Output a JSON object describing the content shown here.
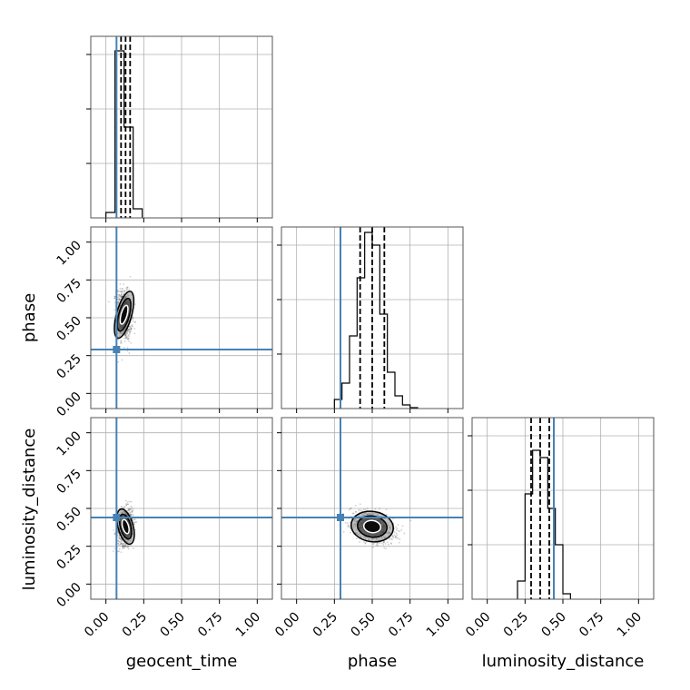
{
  "chart_data": {
    "type": "corner",
    "parameters": [
      "geocent_time",
      "phase",
      "luminosity_distance"
    ],
    "axis_labels": {
      "x": [
        "geocent_time",
        "phase",
        "luminosity_distance"
      ],
      "y": [
        "phase",
        "luminosity_distance"
      ]
    },
    "range": [
      -0.1,
      1.1
    ],
    "ticks": [
      0.0,
      0.25,
      0.5,
      0.75,
      1.0
    ],
    "tick_labels": [
      "0.00",
      "0.25",
      "0.50",
      "0.75",
      "1.00"
    ],
    "grid": true,
    "truth_color": "#4682b4",
    "truths": [
      0.07,
      0.29,
      0.44
    ],
    "histograms": [
      {
        "parameter": "geocent_time",
        "bin_edges": [
          0.0,
          0.06,
          0.12,
          0.18,
          0.24
        ],
        "counts": [
          0.03,
          0.92,
          0.5,
          0.05
        ],
        "quantiles": [
          0.1,
          0.13,
          0.16
        ]
      },
      {
        "parameter": "phase",
        "bin_edges": [
          0.25,
          0.3,
          0.35,
          0.4,
          0.45,
          0.5,
          0.55,
          0.6,
          0.65,
          0.7,
          0.75,
          0.8
        ],
        "counts": [
          0.05,
          0.14,
          0.4,
          0.72,
          0.97,
          0.9,
          0.52,
          0.2,
          0.07,
          0.02,
          0.005
        ],
        "quantiles": [
          0.42,
          0.5,
          0.58
        ]
      },
      {
        "parameter": "luminosity_distance",
        "bin_edges": [
          0.2,
          0.25,
          0.3,
          0.35,
          0.4,
          0.45,
          0.5,
          0.55
        ],
        "counts": [
          0.1,
          0.58,
          0.82,
          0.78,
          0.5,
          0.3,
          0.03
        ],
        "quantiles": [
          0.29,
          0.35,
          0.41
        ]
      }
    ],
    "pair_densities": [
      {
        "x": "geocent_time",
        "y": "phase",
        "center": [
          0.12,
          0.52
        ],
        "spread": [
          0.025,
          0.08
        ],
        "correlation": -0.15
      },
      {
        "x": "geocent_time",
        "y": "luminosity_distance",
        "center": [
          0.13,
          0.38
        ],
        "spread": [
          0.025,
          0.06
        ],
        "correlation": 0.2
      },
      {
        "x": "phase",
        "y": "luminosity_distance",
        "center": [
          0.5,
          0.38
        ],
        "spread": [
          0.07,
          0.05
        ],
        "correlation": -0.35
      }
    ]
  }
}
